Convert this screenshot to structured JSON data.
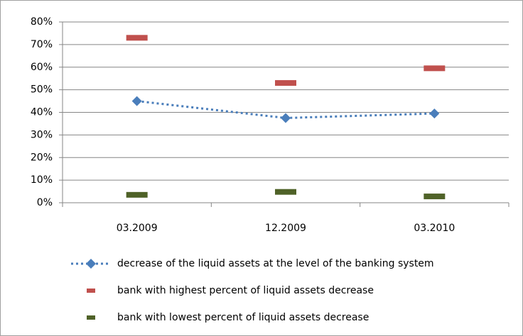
{
  "chart_data": {
    "type": "line",
    "categories": [
      "03.2009",
      "12.2009",
      "03.2010"
    ],
    "series": [
      {
        "name": "decrease of the liquid assets at the level of the banking system",
        "color": "#4a7ebb",
        "line_style": "dotted",
        "marker": "diamond",
        "values": [
          45,
          37.5,
          39.5
        ]
      },
      {
        "name": "bank with highest percent of liquid assets decrease",
        "color": "#c0504d",
        "line_style": "none",
        "marker": "dash",
        "values": [
          73,
          53,
          59.5
        ]
      },
      {
        "name": "bank with lowest percent of liquid assets decrease",
        "color": "#4f6228",
        "line_style": "none",
        "marker": "dash",
        "values": [
          3.5,
          4.8,
          2.8
        ]
      }
    ],
    "ylim": [
      0,
      80
    ],
    "yticks": [
      {
        "value": 0,
        "label": "0%"
      },
      {
        "value": 10,
        "label": "10%"
      },
      {
        "value": 20,
        "label": "20%"
      },
      {
        "value": 30,
        "label": "30%"
      },
      {
        "value": 40,
        "label": "40%"
      },
      {
        "value": 50,
        "label": "50%"
      },
      {
        "value": 60,
        "label": "60%"
      },
      {
        "value": 70,
        "label": "70%"
      },
      {
        "value": 80,
        "label": "80%"
      }
    ],
    "grid": true,
    "legend": "bottom"
  }
}
